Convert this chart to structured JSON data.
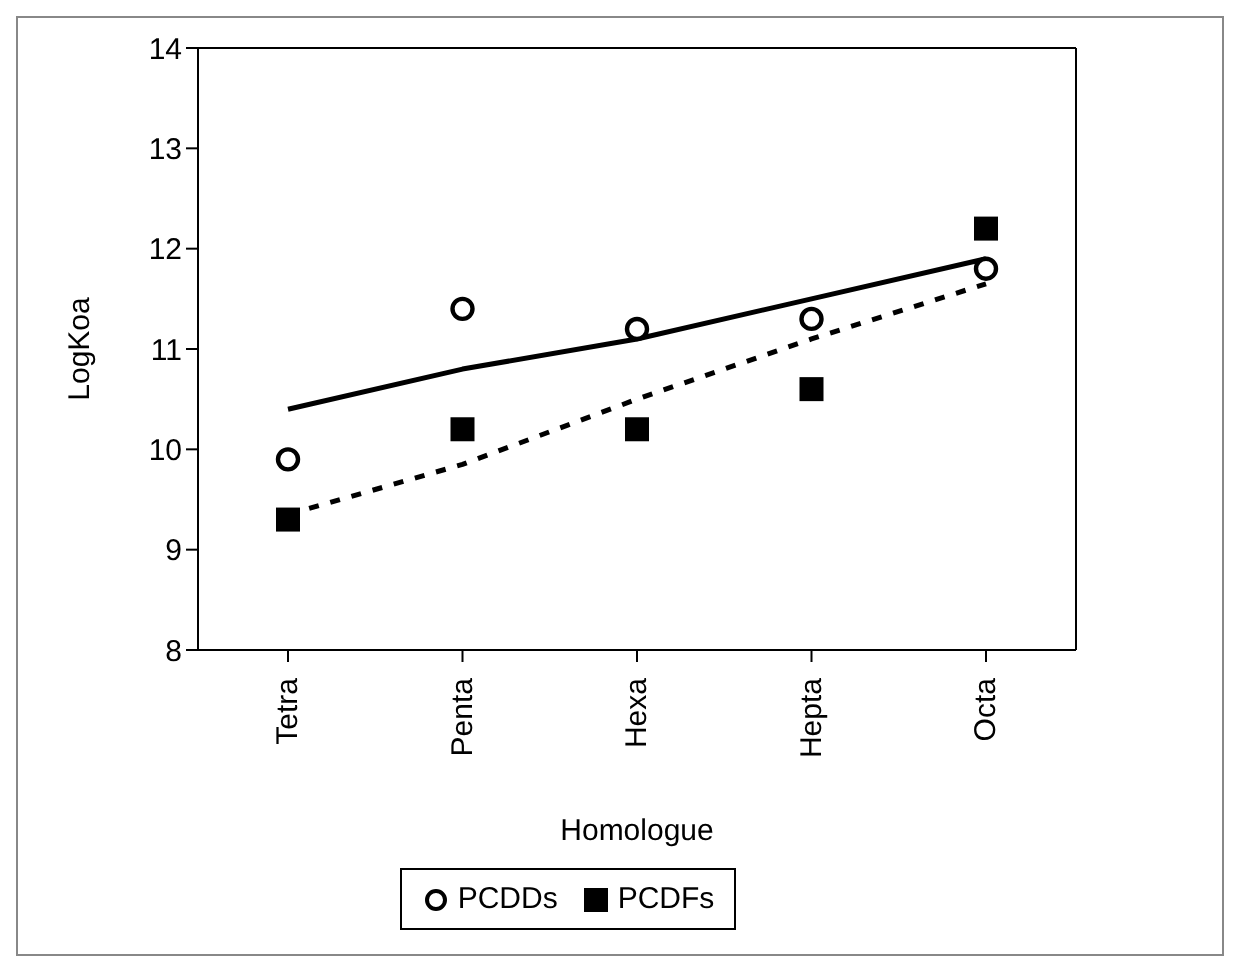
{
  "chart_data": {
    "type": "scatter",
    "xlabel": "Homologue",
    "ylabel": "LogKoa",
    "categories": [
      "Tetra",
      "Penta",
      "Hexa",
      "Hepta",
      "Octa"
    ],
    "ylim": [
      8,
      14
    ],
    "yticks": [
      8,
      9,
      10,
      11,
      12,
      13,
      14
    ],
    "grid": false,
    "legend": "bottom",
    "series": [
      {
        "name": "PCDDs",
        "marker": "circle",
        "color": "#000000",
        "values": [
          9.9,
          11.4,
          11.2,
          11.3,
          11.8
        ]
      },
      {
        "name": "PCDFs",
        "marker": "square",
        "color": "#000000",
        "values": [
          9.3,
          10.2,
          10.2,
          10.6,
          12.2
        ]
      },
      {
        "type": "line",
        "line_style": "solid",
        "marker": "none",
        "color": "#000000",
        "values": [
          10.4,
          10.8,
          11.1,
          11.5,
          11.9
        ]
      },
      {
        "type": "line",
        "line_style": "dashed",
        "marker": "none",
        "color": "#000000",
        "values": [
          9.35,
          9.85,
          10.5,
          11.1,
          11.65
        ]
      }
    ]
  }
}
